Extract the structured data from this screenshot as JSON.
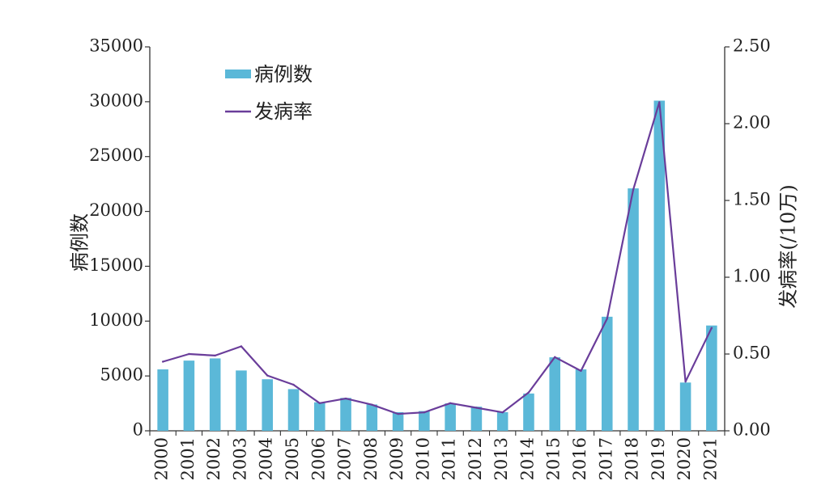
{
  "chart_data": {
    "type": "bar+line",
    "categories": [
      "2000",
      "2001",
      "2002",
      "2003",
      "2004",
      "2005",
      "2006",
      "2007",
      "2008",
      "2009",
      "2010",
      "2011",
      "2012",
      "2013",
      "2014",
      "2015",
      "2016",
      "2017",
      "2018",
      "2019",
      "2020",
      "2021"
    ],
    "series": [
      {
        "name": "病例数",
        "type": "bar",
        "axis": "left",
        "color": "#5bb8d8",
        "values": [
          5600,
          6400,
          6600,
          5500,
          4700,
          3800,
          2600,
          3000,
          2400,
          1700,
          1800,
          2500,
          2200,
          1700,
          3400,
          6700,
          5600,
          10400,
          22100,
          30100,
          4400,
          9600
        ]
      },
      {
        "name": "发病率",
        "type": "line",
        "axis": "right",
        "color": "#6a3d9a",
        "values": [
          0.45,
          0.5,
          0.49,
          0.55,
          0.36,
          0.3,
          0.18,
          0.21,
          0.17,
          0.11,
          0.12,
          0.18,
          0.15,
          0.12,
          0.25,
          0.48,
          0.39,
          0.73,
          1.57,
          2.14,
          0.32,
          0.67
        ]
      }
    ],
    "ylabel": "病例数",
    "y2label": "发病率(/10万)",
    "ylim": [
      0,
      35000
    ],
    "yticks": [
      "0",
      "5000",
      "10000",
      "15000",
      "20000",
      "25000",
      "30000",
      "35000"
    ],
    "y2lim": [
      0,
      2.5
    ],
    "y2ticks": [
      "0.00",
      "0.50",
      "1.00",
      "1.50",
      "2.00",
      "2.50"
    ],
    "grid": false,
    "legend": "top-left"
  }
}
